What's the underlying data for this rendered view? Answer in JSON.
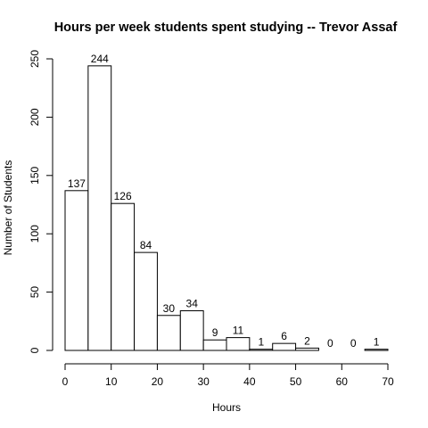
{
  "chart_data": {
    "type": "bar",
    "title": "Hours per week students spent studying -- Trevor Assaf",
    "xlabel": "Hours",
    "ylabel": "Number of Students",
    "bins": [
      {
        "start": 0,
        "end": 5,
        "count": 137,
        "label": "137"
      },
      {
        "start": 5,
        "end": 10,
        "count": 244,
        "label": "244"
      },
      {
        "start": 10,
        "end": 15,
        "count": 126,
        "label": "126"
      },
      {
        "start": 15,
        "end": 20,
        "count": 84,
        "label": "84"
      },
      {
        "start": 20,
        "end": 25,
        "count": 30,
        "label": "30"
      },
      {
        "start": 25,
        "end": 30,
        "count": 34,
        "label": "34"
      },
      {
        "start": 30,
        "end": 35,
        "count": 9,
        "label": "9"
      },
      {
        "start": 35,
        "end": 40,
        "count": 11,
        "label": "11"
      },
      {
        "start": 40,
        "end": 45,
        "count": 1,
        "label": "1"
      },
      {
        "start": 45,
        "end": 50,
        "count": 6,
        "label": "6"
      },
      {
        "start": 50,
        "end": 55,
        "count": 2,
        "label": "2"
      },
      {
        "start": 55,
        "end": 60,
        "count": 0,
        "label": "0"
      },
      {
        "start": 60,
        "end": 65,
        "count": 0,
        "label": "0"
      },
      {
        "start": 65,
        "end": 70,
        "count": 1,
        "label": "1"
      }
    ],
    "xlim": [
      0,
      70
    ],
    "ylim": [
      0,
      250
    ],
    "xticks": [
      0,
      10,
      20,
      30,
      40,
      50,
      60,
      70
    ],
    "xtick_labels": [
      "0",
      "10",
      "20",
      "30",
      "40",
      "50",
      "60",
      "70"
    ],
    "yticks": [
      0,
      50,
      100,
      150,
      200,
      250
    ],
    "ytick_labels": [
      "0",
      "50",
      "100",
      "150",
      "200",
      "250"
    ],
    "grid": false,
    "legend": "none"
  }
}
